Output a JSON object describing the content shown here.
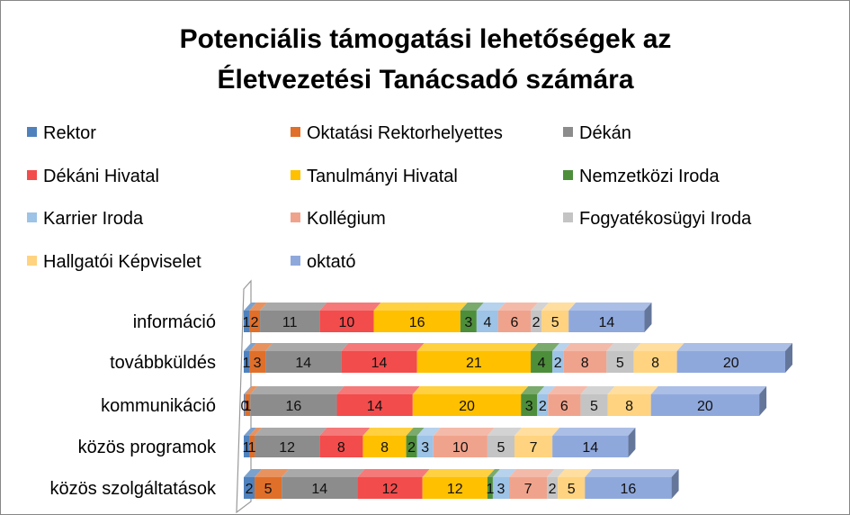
{
  "chart_data": {
    "type": "bar",
    "orientation": "horizontal",
    "stacked": true,
    "title_lines": [
      "Potenciális támogatási lehetőségek az",
      "Életvezetési Tanácsadó számára"
    ],
    "categories": [
      "információ",
      "továbbküldés",
      "kommunikáció",
      "közös programok",
      "közös szolgáltatások"
    ],
    "series": [
      {
        "name": "Rektor",
        "color": "#4F81BD",
        "values": [
          1,
          1,
          0,
          1,
          2
        ]
      },
      {
        "name": "Oktatási Rektorhelyettes",
        "color": "#E06F2A",
        "values": [
          2,
          3,
          1,
          1,
          5
        ]
      },
      {
        "name": "Dékán",
        "color": "#8C8C8C",
        "values": [
          11,
          14,
          16,
          12,
          14
        ]
      },
      {
        "name": "Dékáni Hivatal",
        "color": "#F24C4C",
        "values": [
          10,
          14,
          14,
          8,
          12
        ]
      },
      {
        "name": "Tanulmányi Hivatal",
        "color": "#FFC000",
        "values": [
          16,
          21,
          20,
          8,
          12
        ]
      },
      {
        "name": "Nemzetközi Iroda",
        "color": "#4D8E3B",
        "values": [
          3,
          4,
          3,
          2,
          1
        ]
      },
      {
        "name": "Karrier Iroda",
        "color": "#9DC3E6",
        "values": [
          4,
          2,
          2,
          3,
          3
        ]
      },
      {
        "name": "Kollégium",
        "color": "#F0A38C",
        "values": [
          6,
          8,
          6,
          10,
          7
        ]
      },
      {
        "name": "Fogyatékosügyi Iroda",
        "color": "#C4C4C4",
        "values": [
          2,
          5,
          5,
          5,
          2
        ]
      },
      {
        "name": "Hallgatói Képviselet",
        "color": "#FFD37F",
        "values": [
          5,
          8,
          8,
          7,
          5
        ]
      },
      {
        "name": "oktató",
        "color": "#8FA8DC",
        "values": [
          14,
          20,
          20,
          14,
          16
        ]
      }
    ],
    "xlabel": "",
    "ylabel": "",
    "legend_position": "top",
    "grid": false
  }
}
